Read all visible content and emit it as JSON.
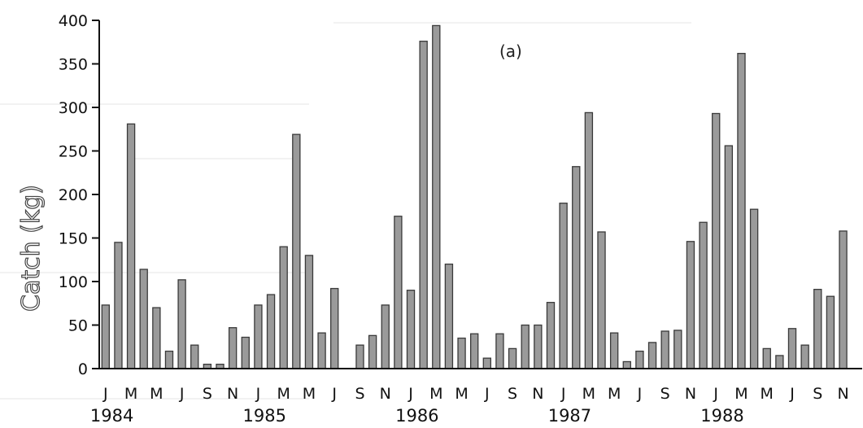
{
  "chart_data": {
    "type": "bar",
    "title": "",
    "annotation": "(a)",
    "xlabel": "",
    "ylabel": "Catch (kg)",
    "ylim": [
      0,
      400
    ],
    "yticks": [
      0,
      50,
      100,
      150,
      200,
      250,
      300,
      350,
      400
    ],
    "grid": false,
    "legend": "none",
    "month_labels": [
      "J",
      "M",
      "M",
      "J",
      "S",
      "N",
      "J",
      "M",
      "M",
      "J",
      "S",
      "N",
      "J",
      "M",
      "M",
      "J",
      "S",
      "N",
      "J",
      "M",
      "M",
      "J",
      "S",
      "N",
      "J",
      "M",
      "M",
      "J",
      "S",
      "N"
    ],
    "year_labels": [
      "1984",
      "1985",
      "1986",
      "1987",
      "1988"
    ],
    "categories": [
      "1984-01",
      "1984-02",
      "1984-03",
      "1984-04",
      "1984-05",
      "1984-06",
      "1984-07",
      "1984-08",
      "1984-09",
      "1984-10",
      "1984-11",
      "1984-12",
      "1985-01",
      "1985-02",
      "1985-03",
      "1985-04",
      "1985-05",
      "1985-06",
      "1985-07",
      "1985-08",
      "1985-09",
      "1985-10",
      "1985-11",
      "1985-12",
      "1986-01",
      "1986-02",
      "1986-03",
      "1986-04",
      "1986-05",
      "1986-06",
      "1986-07",
      "1986-08",
      "1986-09",
      "1986-10",
      "1986-11",
      "1986-12",
      "1987-01",
      "1987-02",
      "1987-03",
      "1987-04",
      "1987-05",
      "1987-06",
      "1987-07",
      "1987-08",
      "1987-09",
      "1987-10",
      "1987-11",
      "1987-12",
      "1988-01",
      "1988-02",
      "1988-03",
      "1988-04",
      "1988-05",
      "1988-06",
      "1988-07",
      "1988-08",
      "1988-09",
      "1988-10",
      "1988-11",
      "1988-12"
    ],
    "values": [
      73,
      145,
      281,
      114,
      70,
      20,
      102,
      27,
      5,
      5,
      47,
      36,
      73,
      85,
      140,
      269,
      130,
      41,
      92,
      0,
      27,
      38,
      73,
      175,
      90,
      376,
      394,
      120,
      35,
      40,
      12,
      40,
      23,
      50,
      50,
      76,
      190,
      232,
      294,
      157,
      41,
      8,
      20,
      30,
      43,
      44,
      146,
      168,
      293,
      256,
      362,
      183,
      23,
      15,
      46,
      27,
      91,
      83,
      158,
      0
    ],
    "colors": {
      "bar": "#9a9a9a",
      "bar_edge": "#3a3a3a",
      "axis": "#111111"
    }
  }
}
